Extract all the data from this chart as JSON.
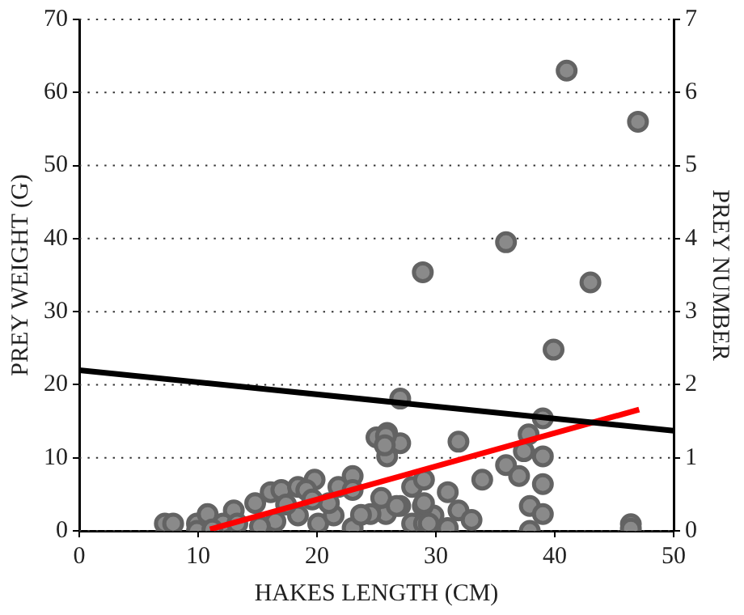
{
  "chart_data": {
    "type": "scatter",
    "xlabel": "HAKES LENGTH (CM)",
    "ylabel": "PREY WEIGHT (G)",
    "y2label": "PREY NUMBER",
    "xlim": [
      0,
      50
    ],
    "xticks": [
      0,
      10,
      20,
      30,
      40,
      50
    ],
    "ylim": [
      0,
      70
    ],
    "yticks": [
      0,
      10,
      20,
      30,
      40,
      50,
      60,
      70
    ],
    "y2lim": [
      0,
      7
    ],
    "y2ticks": [
      0,
      1,
      2,
      3,
      4,
      5,
      6,
      7
    ],
    "grid": "y",
    "legend": false,
    "series": [
      {
        "type": "scatter",
        "marker": "circle",
        "color": "#8a8a8a",
        "x": [
          41,
          47,
          28.9,
          35.9,
          43,
          39.9,
          27,
          39,
          31.9,
          25.9,
          27,
          25.9,
          35.9,
          37,
          33.9,
          39,
          39,
          37.8,
          37.4,
          31,
          31.9,
          33,
          31,
          29.8,
          28.9,
          28,
          29,
          27,
          28,
          29,
          37.9,
          39,
          37.9,
          46.4,
          46.4,
          25.8,
          7.2,
          7.9,
          9.9,
          10.8,
          13,
          14.8,
          16.1,
          17,
          18.4,
          19.8,
          19.1,
          21.8,
          23,
          23,
          25,
          25.8,
          25.7,
          25.4,
          24.5,
          26.7,
          29,
          29.4,
          16.5,
          18.4,
          20.1,
          21.4,
          15.2,
          12.1,
          9.9,
          13.3,
          11.2,
          23,
          23.7,
          21,
          17.4,
          19.6
        ],
        "values": [
          63,
          56,
          35.4,
          39.5,
          34,
          24.8,
          18.1,
          15.4,
          12.2,
          13.4,
          12,
          10.2,
          9,
          7.5,
          7,
          6.4,
          10.2,
          13.2,
          10.9,
          5.3,
          2.8,
          1.5,
          0.4,
          2.1,
          3.4,
          6,
          7,
          3.4,
          1,
          1,
          3.4,
          2.3,
          0,
          0.9,
          0.3,
          2.3,
          1,
          1,
          1,
          2.3,
          2.8,
          3.8,
          5.3,
          5.6,
          6,
          7,
          5.6,
          6,
          7.5,
          5.6,
          12.8,
          13,
          11.7,
          4.5,
          2.3,
          3.4,
          3.8,
          1,
          1.3,
          2.1,
          1,
          2.1,
          0.6,
          1,
          0,
          1,
          0.2,
          0.4,
          2.2,
          3.8,
          3.6,
          4.3
        ]
      },
      {
        "type": "line",
        "axis": "y2",
        "color": "#000000",
        "x": [
          0,
          50
        ],
        "values": [
          2.2,
          1.37
        ]
      },
      {
        "type": "line",
        "color": "#ff0000",
        "x": [
          11,
          47.1
        ],
        "values": [
          0.2,
          16.6
        ]
      }
    ]
  }
}
